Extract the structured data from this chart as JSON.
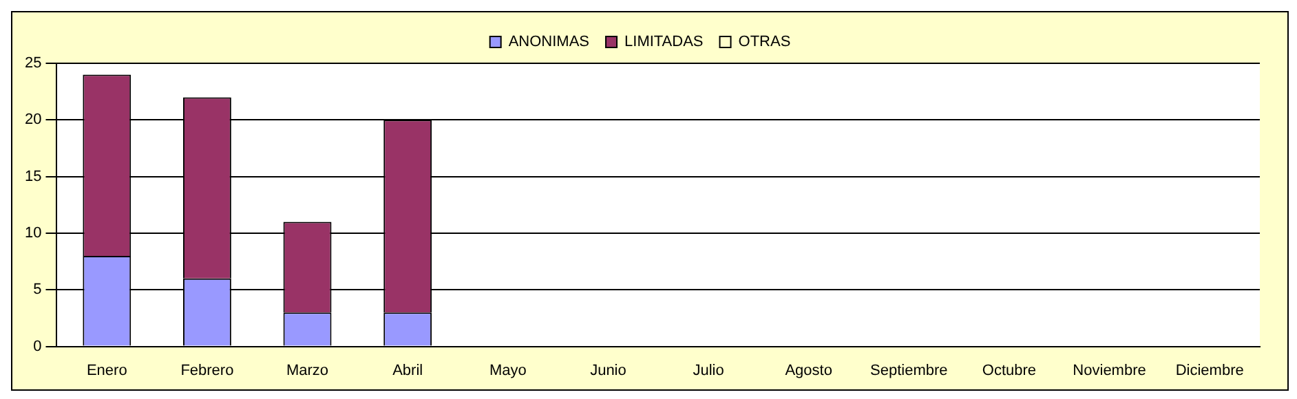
{
  "chart_data": {
    "type": "bar",
    "stacked": true,
    "categories": [
      "Enero",
      "Febrero",
      "Marzo",
      "Abril",
      "Mayo",
      "Junio",
      "Julio",
      "Agosto",
      "Septiembre",
      "Octubre",
      "Noviembre",
      "Diciembre"
    ],
    "series": [
      {
        "name": "ANONIMAS",
        "color": "#9999ff",
        "values": [
          8,
          6,
          3,
          3,
          0,
          0,
          0,
          0,
          0,
          0,
          0,
          0
        ]
      },
      {
        "name": "LIMITADAS",
        "color": "#993366",
        "values": [
          16,
          16,
          8,
          17,
          0,
          0,
          0,
          0,
          0,
          0,
          0,
          0
        ]
      },
      {
        "name": "OTRAS",
        "color": "#ffffcc",
        "values": [
          0,
          0,
          0,
          0,
          0,
          0,
          0,
          0,
          0,
          0,
          0,
          0
        ]
      }
    ],
    "ylim": [
      0,
      25
    ],
    "yticks": [
      0,
      5,
      10,
      15,
      20,
      25
    ],
    "grid": "y",
    "legend": "top"
  }
}
